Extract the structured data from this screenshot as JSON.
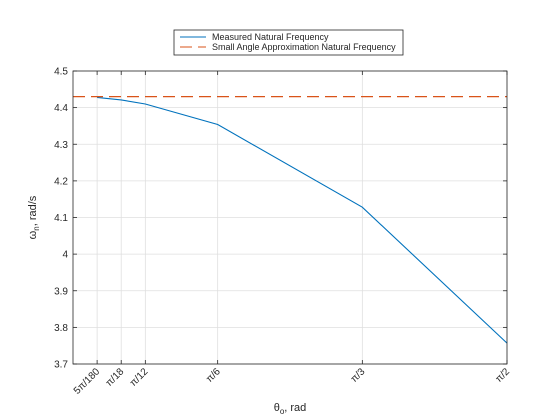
{
  "chart_data": {
    "type": "line",
    "title": "",
    "xlabel": "θ_o, rad",
    "xlabel_main": "θ",
    "xlabel_sub": "o",
    "xlabel_rest": ", rad",
    "ylabel": "ω_n, rad/s",
    "ylabel_main": "ω",
    "ylabel_sub": "n",
    "ylabel_rest": ", rad/s",
    "xlim": [
      0.0,
      1.5708
    ],
    "ylim": [
      3.7,
      4.5
    ],
    "x_ticks": [
      {
        "value": 0.0873,
        "label": "5π/180"
      },
      {
        "value": 0.1745,
        "label": "π/18"
      },
      {
        "value": 0.2618,
        "label": "π/12"
      },
      {
        "value": 0.5236,
        "label": "π/6"
      },
      {
        "value": 1.0472,
        "label": "π/3"
      },
      {
        "value": 1.5708,
        "label": "π/2"
      }
    ],
    "y_ticks": [
      {
        "value": 3.7,
        "label": "3.7"
      },
      {
        "value": 3.8,
        "label": "3.8"
      },
      {
        "value": 3.9,
        "label": "3.9"
      },
      {
        "value": 4.0,
        "label": "4"
      },
      {
        "value": 4.1,
        "label": "4.1"
      },
      {
        "value": 4.2,
        "label": "4.2"
      },
      {
        "value": 4.3,
        "label": "4.3"
      },
      {
        "value": 4.4,
        "label": "4.4"
      },
      {
        "value": 4.5,
        "label": "4.5"
      }
    ],
    "grid": true,
    "legend_position": "top-center",
    "series": [
      {
        "name": "Measured Natural Frequency",
        "style": "solid",
        "color": "#0072BD",
        "x": [
          0.0873,
          0.1745,
          0.2618,
          0.5236,
          1.0472,
          1.5708
        ],
        "y": [
          4.428,
          4.421,
          4.41,
          4.354,
          4.128,
          3.757
        ]
      },
      {
        "name": "Small Angle Approximation Natural Frequency",
        "style": "dashed",
        "color": "#D95319",
        "x": [
          0.0,
          1.5708
        ],
        "y": [
          4.43,
          4.43
        ]
      }
    ]
  }
}
